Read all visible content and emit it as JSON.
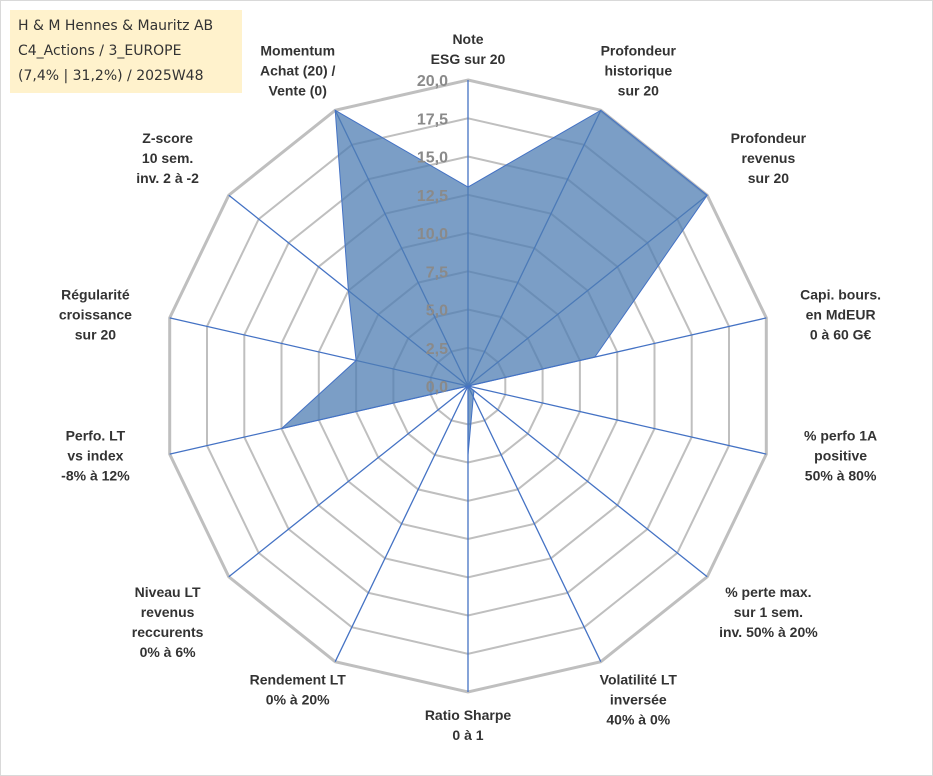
{
  "info": {
    "line1": "H & M Hennes & Mauritz AB",
    "line2": "C4_Actions / 3_EUROPE",
    "line3": "(7,4% | 31,2%) / 2025W48"
  },
  "colors": {
    "grid": "#bfbfbf",
    "spoke": "#4472c4",
    "fill": "#4f7db3",
    "fill_opacity": 0.75,
    "tick_text": "#8a8a8a",
    "label_text": "#333333",
    "info_bg": "#fff2cc"
  },
  "chart_data": {
    "type": "radar",
    "title": "",
    "rmax": 20,
    "rmin": 0,
    "ticks": [
      "0,0",
      "2,5",
      "5,0",
      "7,5",
      "10,0",
      "12,5",
      "15,0",
      "17,5",
      "20,0"
    ],
    "categories": [
      [
        "Note",
        "ESG sur 20"
      ],
      [
        "Profondeur",
        "historique",
        "sur 20"
      ],
      [
        "Profondeur",
        "revenus",
        "sur 20"
      ],
      [
        "Capi. bours.",
        "en MdEUR",
        "0 à 60 G€"
      ],
      [
        "% perfo 1A",
        "positive",
        "50% à 80%"
      ],
      [
        "% perte max.",
        "sur 1 sem.",
        "inv. 50% à 20%"
      ],
      [
        "Volatilité LT",
        "inversée",
        "40% à 0%"
      ],
      [
        "Ratio Sharpe",
        "0 à 1"
      ],
      [
        "Rendement LT",
        "0% à 20%"
      ],
      [
        "Niveau LT",
        "revenus",
        "reccurents",
        "0% à 6%"
      ],
      [
        "Perfo. LT",
        "vs index",
        "-8% à 12%"
      ],
      [
        "Régularité",
        "croissance",
        "sur 20"
      ],
      [
        "Z-score",
        "10 sem.",
        "inv. 2 à -2"
      ],
      [
        "Momentum",
        "Achat (20) /",
        "Vente (0)"
      ]
    ],
    "series": [
      {
        "name": "H & M Hennes & Mauritz AB",
        "values": [
          13,
          20,
          20,
          8.5,
          0,
          0.5,
          0.8,
          4.5,
          0,
          0,
          12.5,
          7.5,
          10,
          20
        ]
      }
    ]
  }
}
